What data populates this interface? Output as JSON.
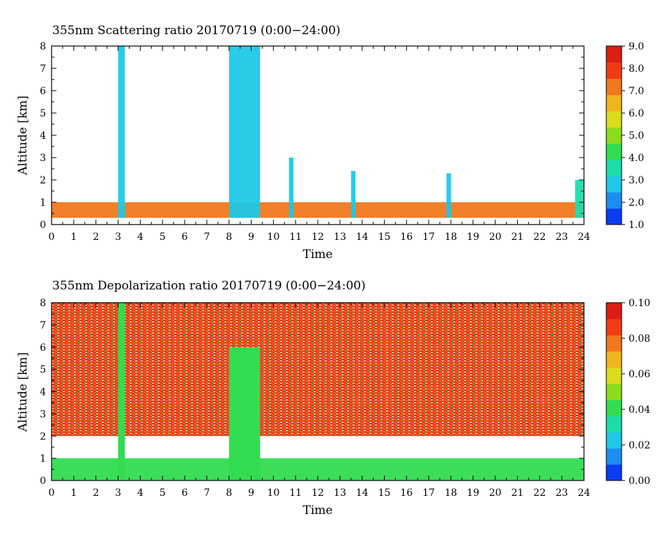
{
  "chart_data": [
    {
      "type": "heatmap",
      "title": "355nm Scattering ratio  20170719 (0:00−24:00)",
      "xlabel": "Time",
      "ylabel": "Altitude [km]",
      "xlim": [
        0,
        24
      ],
      "ylim": [
        0,
        8
      ],
      "x_ticks": [
        "0",
        "1",
        "2",
        "3",
        "4",
        "5",
        "6",
        "7",
        "8",
        "9",
        "10",
        "11",
        "12",
        "13",
        "14",
        "15",
        "16",
        "17",
        "18",
        "19",
        "20",
        "21",
        "22",
        "23",
        "24"
      ],
      "y_ticks": [
        "0",
        "1",
        "2",
        "3",
        "4",
        "5",
        "6",
        "7",
        "8"
      ],
      "colorbar": {
        "range": [
          1.0,
          9.0
        ],
        "ticks": [
          "1.0",
          "2.0",
          "3.0",
          "4.0",
          "5.0",
          "6.0",
          "7.0",
          "8.0",
          "9.0"
        ],
        "colormap": [
          "#0a3cf0",
          "#1e8cf0",
          "#1ec8e6",
          "#1edcaa",
          "#32dc50",
          "#8cdc1e",
          "#dcdc1e",
          "#f0b41e",
          "#f0781e",
          "#f03c14",
          "#dc1e14"
        ]
      },
      "features": [
        {
          "t0": 0.0,
          "t1": 24.0,
          "base_km": 0.3,
          "top_km": 1.0,
          "value": 7.5
        },
        {
          "t0": 3.0,
          "t1": 3.3,
          "base_km": 0.3,
          "top_km": 8.0,
          "value": 2.5
        },
        {
          "t0": 8.0,
          "t1": 9.4,
          "base_km": 0.3,
          "top_km": 8.0,
          "value": 2.5
        },
        {
          "t0": 10.7,
          "t1": 10.9,
          "base_km": 0.3,
          "top_km": 3.0,
          "value": 2.5
        },
        {
          "t0": 13.5,
          "t1": 13.7,
          "base_km": 0.3,
          "top_km": 2.4,
          "value": 2.5
        },
        {
          "t0": 17.8,
          "t1": 18.0,
          "base_km": 0.3,
          "top_km": 2.3,
          "value": 2.5
        },
        {
          "t0": 23.6,
          "t1": 24.0,
          "base_km": 0.3,
          "top_km": 2.0,
          "value": 3.0
        }
      ]
    },
    {
      "type": "heatmap",
      "title": "355nm Depolarization ratio  20170719 (0:00−24:00)",
      "xlabel": "Time",
      "ylabel": "Altitude [km]",
      "xlim": [
        0,
        24
      ],
      "ylim": [
        0,
        8
      ],
      "x_ticks": [
        "0",
        "1",
        "2",
        "3",
        "4",
        "5",
        "6",
        "7",
        "8",
        "9",
        "10",
        "11",
        "12",
        "13",
        "14",
        "15",
        "16",
        "17",
        "18",
        "19",
        "20",
        "21",
        "22",
        "23",
        "24"
      ],
      "y_ticks": [
        "0",
        "1",
        "2",
        "3",
        "4",
        "5",
        "6",
        "7",
        "8"
      ],
      "colorbar": {
        "range": [
          0.0,
          0.1
        ],
        "ticks": [
          "0.00",
          "0.02",
          "0.04",
          "0.06",
          "0.08",
          "0.10"
        ],
        "colormap": [
          "#0a3cf0",
          "#1e8cf0",
          "#1ec8e6",
          "#1edcaa",
          "#32dc50",
          "#8cdc1e",
          "#dcdc1e",
          "#f0b41e",
          "#f0781e",
          "#f03c14",
          "#dc1e14"
        ]
      },
      "features": [
        {
          "t0": 0.0,
          "t1": 24.0,
          "base_km": 0.0,
          "top_km": 1.0,
          "value": 0.035
        },
        {
          "t0": 3.0,
          "t1": 3.3,
          "base_km": 0.0,
          "top_km": 8.0,
          "value": 0.04
        },
        {
          "t0": 8.0,
          "t1": 9.4,
          "base_km": 0.0,
          "top_km": 6.0,
          "value": 0.035
        },
        {
          "t0": 0.0,
          "t1": 24.0,
          "base_km": 2.0,
          "top_km": 8.0,
          "value": 0.09
        }
      ]
    }
  ]
}
